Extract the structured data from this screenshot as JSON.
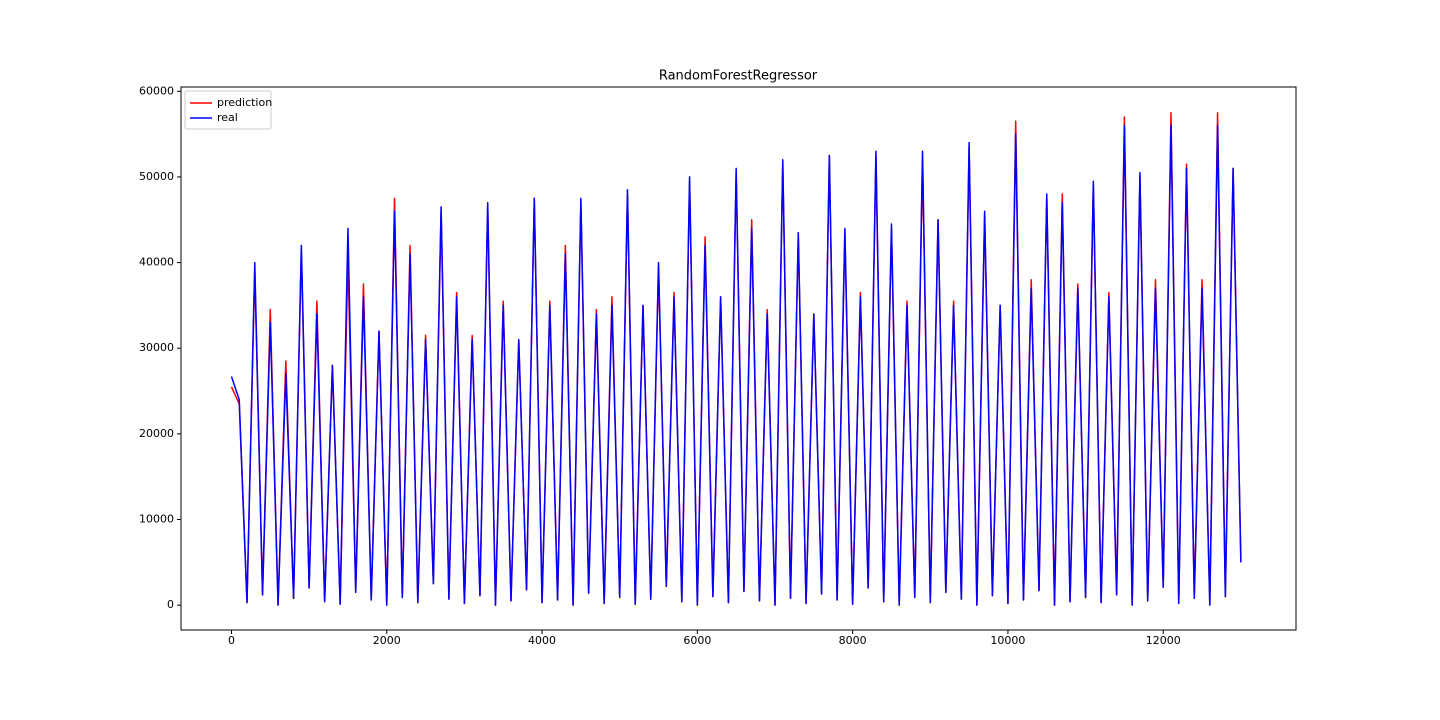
{
  "chart_data": {
    "type": "line",
    "title": "RandomForestRegressor",
    "x": [
      0,
      100,
      200,
      300,
      400,
      500,
      600,
      700,
      800,
      900,
      1000,
      1100,
      1200,
      1300,
      1400,
      1500,
      1600,
      1700,
      1800,
      1900,
      2000,
      2100,
      2200,
      2300,
      2400,
      2500,
      2600,
      2700,
      2800,
      2900,
      3000,
      3100,
      3200,
      3300,
      3400,
      3500,
      3600,
      3700,
      3800,
      3900,
      4000,
      4100,
      4200,
      4300,
      4400,
      4500,
      4600,
      4700,
      4800,
      4900,
      5000,
      5100,
      5200,
      5300,
      5400,
      5500,
      5600,
      5700,
      5800,
      5900,
      6000,
      6100,
      6200,
      6300,
      6400,
      6500,
      6600,
      6700,
      6800,
      6900,
      7000,
      7100,
      7200,
      7300,
      7400,
      7500,
      7600,
      7700,
      7800,
      7900,
      8000,
      8100,
      8200,
      8300,
      8400,
      8500,
      8600,
      8700,
      8800,
      8900,
      9000,
      9100,
      9200,
      9300,
      9400,
      9500,
      9600,
      9700,
      9800,
      9900,
      10000,
      10100,
      10200,
      10300,
      10400,
      10500,
      10600,
      10700,
      10800,
      10900,
      11000,
      11100,
      11200,
      11300,
      11400,
      11500,
      11600,
      11700,
      11800,
      11900,
      12000,
      12100,
      12200,
      12300,
      12400,
      12500,
      12600,
      12700,
      12800,
      12900,
      13000
    ],
    "series": [
      {
        "name": "prediction",
        "color": "#ff0000",
        "values": [
          25500,
          23500,
          300,
          39000,
          1200,
          34500,
          0,
          28500,
          800,
          41500,
          2000,
          35500,
          400,
          28000,
          100,
          40500,
          1500,
          37500,
          600,
          32000,
          0,
          47500,
          900,
          42000,
          300,
          31500,
          2500,
          46000,
          700,
          36500,
          200,
          31500,
          1100,
          46500,
          0,
          35500,
          500,
          31000,
          1800,
          47500,
          300,
          35500,
          600,
          42000,
          0,
          47000,
          1400,
          34500,
          200,
          36000,
          900,
          48000,
          100,
          35000,
          700,
          39500,
          2200,
          36500,
          400,
          49500,
          0,
          43000,
          1000,
          36000,
          300,
          50500,
          1600,
          45000,
          500,
          34500,
          0,
          51500,
          800,
          43000,
          200,
          34000,
          1300,
          52500,
          600,
          43500,
          100,
          36500,
          2000,
          52500,
          400,
          44000,
          0,
          35500,
          900,
          52000,
          300,
          45000,
          1500,
          35500,
          700,
          53500,
          0,
          45500,
          1100,
          35000,
          200,
          56500,
          600,
          38000,
          1700,
          47500,
          0,
          48000,
          400,
          37500,
          900,
          49000,
          300,
          36500,
          1200,
          57000,
          0,
          50000,
          500,
          38000,
          2100,
          57500,
          200,
          51500,
          800,
          38000,
          0,
          57500,
          1000,
          51000,
          5000
        ]
      },
      {
        "name": "real",
        "color": "#0000ff",
        "values": [
          26700,
          24000,
          300,
          40000,
          1200,
          33000,
          0,
          27000,
          800,
          42000,
          2000,
          34000,
          400,
          28000,
          100,
          44000,
          1500,
          36000,
          600,
          32000,
          0,
          46000,
          900,
          41000,
          300,
          31000,
          2500,
          46500,
          700,
          36000,
          200,
          31000,
          1100,
          47000,
          0,
          35000,
          500,
          31000,
          1800,
          47500,
          300,
          35000,
          600,
          41000,
          0,
          47500,
          1400,
          34000,
          200,
          35000,
          900,
          48500,
          100,
          35000,
          700,
          40000,
          2200,
          36000,
          400,
          50000,
          0,
          42000,
          1000,
          36000,
          300,
          51000,
          1600,
          44000,
          500,
          34000,
          0,
          52000,
          800,
          43500,
          200,
          34000,
          1300,
          52500,
          600,
          44000,
          100,
          36000,
          2000,
          53000,
          400,
          44500,
          0,
          35000,
          900,
          53000,
          300,
          45000,
          1500,
          35000,
          700,
          54000,
          0,
          46000,
          1100,
          35000,
          200,
          55000,
          600,
          37000,
          1700,
          48000,
          0,
          47000,
          400,
          37000,
          900,
          49500,
          300,
          36000,
          1200,
          56000,
          0,
          50500,
          500,
          37000,
          2100,
          56000,
          200,
          51000,
          800,
          37000,
          0,
          56000,
          1000,
          51000,
          5000
        ]
      }
    ],
    "xlim": [
      -650,
      13710
    ],
    "ylim": [
      -2900,
      60500
    ],
    "xticks": [
      0,
      2000,
      4000,
      6000,
      8000,
      10000,
      12000
    ],
    "yticks": [
      0,
      10000,
      20000,
      30000,
      40000,
      50000,
      60000
    ],
    "legend": "upper left",
    "grid": false
  }
}
